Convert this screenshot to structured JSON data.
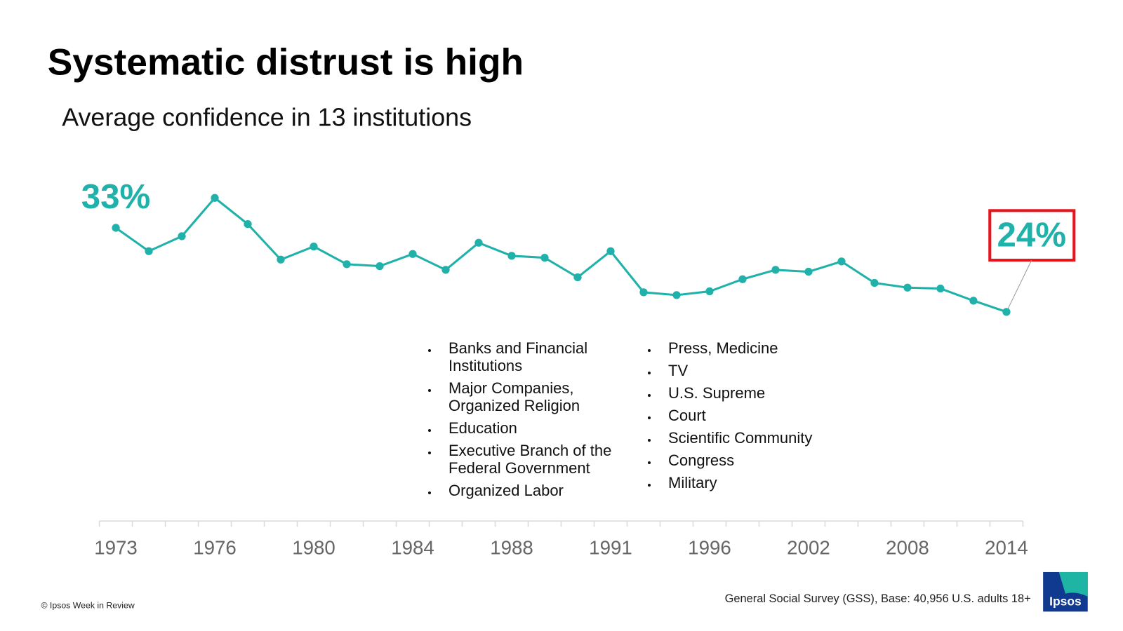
{
  "chart_data": {
    "type": "line",
    "title": "Systematic distrust is high",
    "subtitle": "Average confidence in 13 institutions",
    "categories": [
      "1973",
      null,
      null,
      "1976",
      null,
      null,
      "1980",
      null,
      null,
      "1984",
      null,
      null,
      "1988",
      null,
      null,
      "1991",
      null,
      null,
      "1996",
      null,
      null,
      "2002",
      null,
      null,
      "2008",
      null,
      null,
      "2014"
    ],
    "values": [
      33,
      30.5,
      32.1,
      36.2,
      33.4,
      29.6,
      31.0,
      29.1,
      28.9,
      30.2,
      28.5,
      31.4,
      30.0,
      29.8,
      27.7,
      30.5,
      26.1,
      25.8,
      26.2,
      27.5,
      28.5,
      28.3,
      29.4,
      27.1,
      26.6,
      26.5,
      25.2,
      24
    ],
    "value_labels": [
      "33%",
      null,
      null,
      null,
      null,
      null,
      null,
      null,
      null,
      null,
      null,
      null,
      null,
      null,
      null,
      null,
      null,
      null,
      null,
      null,
      null,
      null,
      null,
      null,
      null,
      null,
      null,
      "24%"
    ],
    "color": "#20b2aa",
    "ylim": [
      15,
      40
    ],
    "institutions_left": [
      "Banks and Financial Institutions",
      "Major Companies, Organized Religion",
      "Education",
      "Executive Branch of the Federal Government",
      "Organized Labor"
    ],
    "institutions_right": [
      "Press, Medicine",
      "TV",
      "U.S. Supreme",
      "Court",
      "Scientific Community",
      "Congress",
      "Military"
    ],
    "source": "General Social Survey (GSS), Base: 40,956 U.S. adults 18+",
    "copyright": "© Ipsos Week in Review",
    "logo": "Ipsos"
  }
}
